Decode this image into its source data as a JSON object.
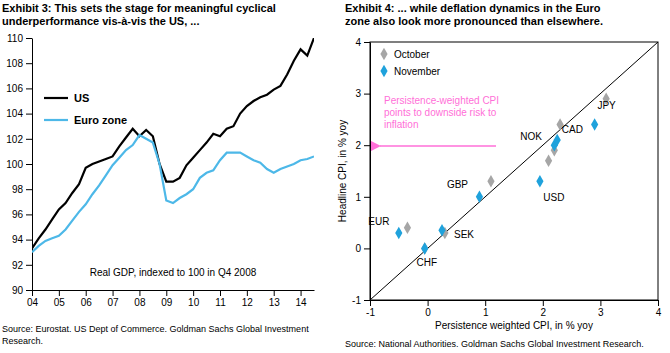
{
  "chart_data": [
    {
      "type": "line",
      "title": [
        "Exhibit 3: This sets the stage for meaningful cyclical",
        "underperformance vis-à-vis the US, ..."
      ],
      "annotation": "Real GDP, indexed to 100 in Q4 2008",
      "source": [
        "Source: Eurostat. US Dept of Commerce. Goldman Sachs Global Investment",
        "Research."
      ],
      "x": [
        2004,
        2004.25,
        2004.5,
        2004.75,
        2005,
        2005.25,
        2005.5,
        2005.75,
        2006,
        2006.25,
        2006.5,
        2006.75,
        2007,
        2007.25,
        2007.5,
        2007.75,
        2008,
        2008.25,
        2008.5,
        2008.75,
        2009,
        2009.25,
        2009.5,
        2009.75,
        2010,
        2010.25,
        2010.5,
        2010.75,
        2011,
        2011.25,
        2011.5,
        2011.75,
        2012,
        2012.25,
        2012.5,
        2012.75,
        2013,
        2013.25,
        2013.5,
        2013.75,
        2014,
        2014.25,
        2014.5
      ],
      "xlim": [
        2004,
        2014.5
      ],
      "xticks": [
        {
          "value": 2004,
          "label": "04"
        },
        {
          "value": 2005,
          "label": "05"
        },
        {
          "value": 2006,
          "label": "06"
        },
        {
          "value": 2007,
          "label": "07"
        },
        {
          "value": 2008,
          "label": "08"
        },
        {
          "value": 2009,
          "label": "09"
        },
        {
          "value": 2010,
          "label": "10"
        },
        {
          "value": 2011,
          "label": "11"
        },
        {
          "value": 2012,
          "label": "12"
        },
        {
          "value": 2013,
          "label": "13"
        },
        {
          "value": 2014,
          "label": "14"
        }
      ],
      "ylim": [
        90,
        110
      ],
      "yticks": [
        90,
        92,
        94,
        96,
        98,
        100,
        102,
        104,
        106,
        108,
        110
      ],
      "legend": "top-left",
      "series": [
        {
          "name": "US",
          "color": "#000000",
          "values": [
            93.3,
            94.1,
            94.8,
            95.6,
            96.4,
            96.9,
            97.7,
            98.4,
            99.7,
            100.0,
            100.2,
            100.4,
            100.6,
            101.4,
            102.1,
            102.8,
            102.2,
            102.7,
            102.2,
            100.0,
            98.6,
            98.6,
            98.9,
            99.9,
            100.5,
            101.1,
            101.7,
            102.4,
            102.2,
            102.8,
            103.0,
            104.0,
            104.6,
            105.0,
            105.3,
            105.5,
            105.9,
            106.2,
            107.1,
            108.2,
            109.1,
            108.6,
            110.0
          ]
        },
        {
          "name": "Euro zone",
          "color": "#4db8e8",
          "values": [
            93.0,
            93.5,
            93.9,
            94.1,
            94.3,
            94.8,
            95.5,
            96.2,
            96.8,
            97.6,
            98.3,
            99.1,
            99.9,
            100.5,
            101.1,
            101.5,
            102.3,
            102.0,
            101.7,
            100.0,
            97.1,
            96.9,
            97.3,
            97.6,
            98.0,
            98.9,
            99.3,
            99.5,
            100.3,
            100.9,
            100.9,
            100.9,
            100.6,
            100.3,
            100.1,
            99.6,
            99.3,
            99.6,
            99.8,
            100.0,
            100.3,
            100.4,
            100.6
          ]
        }
      ]
    },
    {
      "type": "scatter",
      "title": [
        "Exhibit 4: ... while deflation dynamics in the Euro",
        "zone also look more pronounced than elsewhere."
      ],
      "source": [
        "Source: National Authorities. Goldman Sachs Global Investment Research."
      ],
      "xlabel": "Persistence weighted CPI, in % yoy",
      "ylabel": "Headline CPI, in % yoy",
      "xlim": [
        -1,
        4
      ],
      "ylim": [
        -1,
        4
      ],
      "xticks": [
        -1,
        0,
        1,
        2,
        3,
        4
      ],
      "yticks": [
        -1,
        0,
        1,
        2,
        3,
        4
      ],
      "legend": "top-left",
      "marker": "diamond",
      "point_labels": [
        "JPY",
        "CAD",
        "NOK",
        "USD",
        "GBP",
        "SEK",
        "EUR",
        "CHF"
      ],
      "annotation": {
        "text": [
          "Persistence-weighted CPI",
          "points to downside risk to",
          "inflation"
        ],
        "color": "#ff6fd8"
      },
      "series": [
        {
          "name": "October",
          "color": "#a6a6a6",
          "x": [
            3.1,
            2.3,
            2.2,
            2.1,
            1.1,
            0.3,
            -0.35,
            -0.05
          ],
          "values": [
            2.9,
            2.4,
            1.9,
            1.7,
            1.3,
            0.3,
            0.4,
            0.0
          ]
        },
        {
          "name": "November",
          "color": "#1fa2dc",
          "x": [
            2.9,
            2.2,
            2.25,
            1.95,
            0.9,
            0.25,
            -0.5,
            -0.05
          ],
          "values": [
            2.4,
            2.0,
            2.1,
            1.3,
            1.0,
            0.35,
            0.3,
            0.0
          ]
        },
        {
          "type": "line",
          "color": "#000000",
          "x": [
            -1,
            4
          ],
          "values": [
            -1,
            4
          ]
        }
      ]
    }
  ]
}
